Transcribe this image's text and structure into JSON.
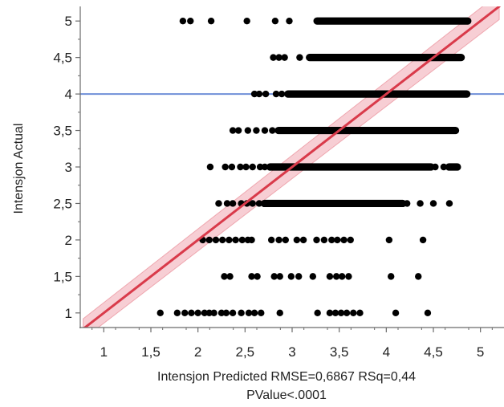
{
  "chart_data": {
    "type": "scatter",
    "title": "",
    "xlabel": "Intensjon Predicted RMSE=0,6867 RSq=0,44",
    "xlabel_line2": "PValue<.0001",
    "ylabel": "Intensjon Actual",
    "xlim": [
      0.75,
      5.25
    ],
    "ylim": [
      0.8,
      5.2
    ],
    "grid": false,
    "legend": "none",
    "x_ticks": [
      {
        "value": 1,
        "label": "1"
      },
      {
        "value": 1.5,
        "label": "1,5"
      },
      {
        "value": 2,
        "label": "2"
      },
      {
        "value": 2.5,
        "label": "2,5"
      },
      {
        "value": 3,
        "label": "3"
      },
      {
        "value": 3.5,
        "label": "3,5"
      },
      {
        "value": 4,
        "label": "4"
      },
      {
        "value": 4.5,
        "label": "4,5"
      },
      {
        "value": 5,
        "label": "5"
      }
    ],
    "y_ticks": [
      {
        "value": 1,
        "label": "1"
      },
      {
        "value": 1.5,
        "label": "1,5"
      },
      {
        "value": 2,
        "label": "2"
      },
      {
        "value": 2.5,
        "label": "2,5"
      },
      {
        "value": 3,
        "label": "3"
      },
      {
        "value": 3.5,
        "label": "3,5"
      },
      {
        "value": 4,
        "label": "4"
      },
      {
        "value": 4.5,
        "label": "4,5"
      },
      {
        "value": 5,
        "label": "5"
      }
    ],
    "mean_line": {
      "y": 4.0,
      "color": "#6f8fd8"
    },
    "fit_line": {
      "x": [
        0.78,
        5.2
      ],
      "y": [
        0.78,
        5.2
      ],
      "color": "#d93a4a"
    },
    "confidence_band": {
      "x": [
        0.78,
        5.2
      ],
      "lower": [
        0.64,
        5.02
      ],
      "upper": [
        0.92,
        5.38
      ],
      "color": "#f0a6b0"
    },
    "point_color": "#000000",
    "rows": [
      {
        "y": 5,
        "points": [
          1.84,
          1.92,
          2.14,
          2.52,
          2.82,
          2.97
        ],
        "bands": [
          [
            3.26,
            4.87
          ]
        ]
      },
      {
        "y": 4.5,
        "points": [
          2.8,
          2.86,
          2.92,
          3.08
        ],
        "bands": [
          [
            3.18,
            4.8
          ]
        ]
      },
      {
        "y": 4,
        "points": [
          2.6,
          2.65,
          2.72,
          2.83,
          2.89
        ],
        "bands": [
          [
            2.95,
            4.86
          ]
        ]
      },
      {
        "y": 3.5,
        "points": [
          2.37,
          2.43,
          2.53,
          2.62,
          2.71,
          2.79
        ],
        "bands": [
          [
            2.85,
            4.74
          ]
        ]
      },
      {
        "y": 3,
        "points": [
          2.13,
          2.29,
          2.36,
          2.45,
          2.51,
          2.58,
          2.66,
          2.71,
          4.52,
          4.61
        ],
        "bands": [
          [
            2.76,
            4.48
          ],
          [
            4.66,
            4.76
          ]
        ]
      },
      {
        "y": 2.5,
        "points": [
          2.22,
          2.31,
          2.37,
          2.46,
          2.52,
          2.58,
          2.65,
          4.22,
          4.36,
          4.5,
          4.67
        ],
        "bands": [
          [
            2.7,
            4.18
          ]
        ]
      },
      {
        "y": 2,
        "points": [
          2.05,
          2.12,
          2.19,
          2.26,
          2.33,
          2.4,
          2.47,
          2.53,
          2.57,
          2.78,
          2.86,
          2.93,
          3.05,
          3.12,
          3.26,
          3.34,
          3.42,
          3.48,
          3.55,
          3.62,
          4.03,
          4.39
        ],
        "bands": []
      },
      {
        "y": 1.5,
        "points": [
          2.28,
          2.34,
          2.57,
          2.63,
          2.81,
          2.87,
          2.99,
          3.07,
          3.22,
          3.4,
          3.47,
          3.53,
          3.6,
          4.05,
          4.34
        ],
        "bands": []
      },
      {
        "y": 1,
        "points": [
          1.6,
          1.78,
          1.86,
          1.93,
          2.0,
          2.07,
          2.12,
          2.17,
          2.25,
          2.3,
          2.37,
          2.46,
          2.54,
          2.6,
          2.67,
          2.87,
          3.27,
          3.4,
          3.46,
          3.52,
          3.58,
          3.65,
          3.72,
          4.1,
          4.44
        ],
        "bands": []
      }
    ]
  }
}
